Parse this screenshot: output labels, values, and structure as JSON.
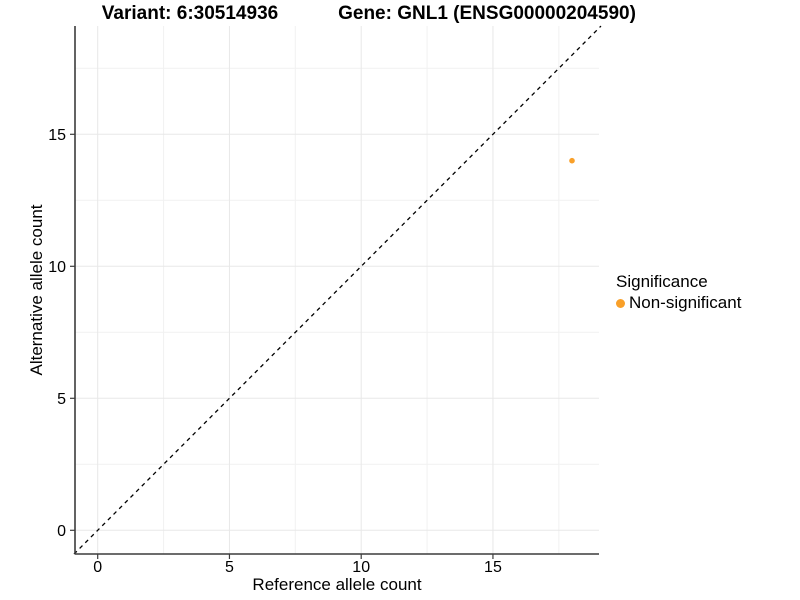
{
  "figure": {
    "title_left": "Variant: 6:30514936",
    "title_right": "Gene: GNL1 (ENSG00000204590)"
  },
  "chart_data": {
    "type": "scatter",
    "title": "Variant: 6:30514936   Gene: GNL1 (ENSG00000204590)",
    "xlabel": "Reference allele count",
    "ylabel": "Alternative allele count",
    "xlim": [
      -0.87,
      19.05
    ],
    "ylim": [
      -0.9,
      19.1
    ],
    "x_ticks": [
      0,
      5,
      10,
      15
    ],
    "y_ticks": [
      0,
      5,
      10,
      15
    ],
    "x_minor_gridlines": [
      2.5,
      7.5,
      12.5,
      17.5
    ],
    "y_minor_gridlines": [
      2.5,
      7.5,
      12.5,
      17.5
    ],
    "grid": true,
    "identity_line": {
      "style": "dashed",
      "equation": "y = x",
      "from": [
        -0.9,
        -0.9
      ],
      "to": [
        19.1,
        19.1
      ],
      "color": "#000000"
    },
    "series": [
      {
        "name": "Non-significant",
        "color": "#F9A029",
        "points": [
          {
            "x": 18,
            "y": 14
          }
        ]
      }
    ],
    "legend": {
      "title": "Significance",
      "position": "right",
      "items": [
        {
          "label": "Non-significant",
          "color": "#F9A029"
        }
      ]
    }
  },
  "colors": {
    "point_orange": "#F9A029",
    "axis_line": "#3c3c3c",
    "grid_major": "#e8e8e8",
    "grid_minor": "#f1f1f1",
    "background": "#ffffff",
    "text": "#000000"
  }
}
